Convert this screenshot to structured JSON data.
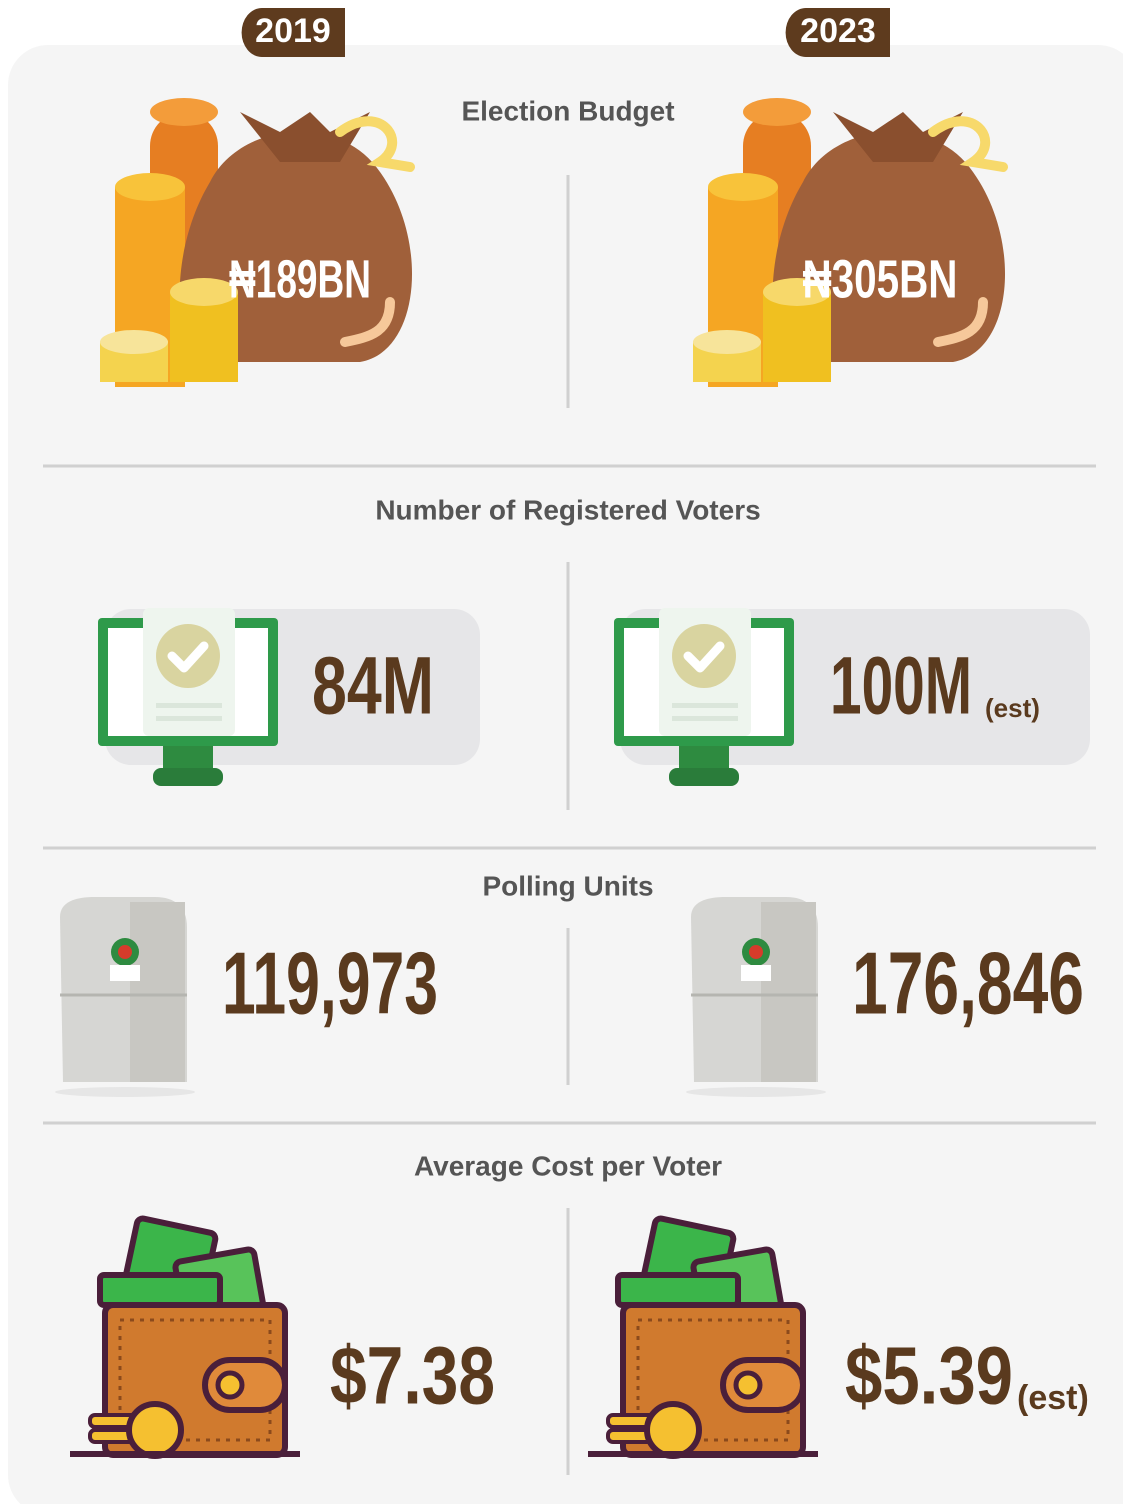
{
  "years": [
    "2019",
    "2023"
  ],
  "sections": [
    {
      "title": "Election Budget",
      "left": {
        "value": "₦189BN"
      },
      "right": {
        "value": "₦305BN"
      }
    },
    {
      "title": "Number of Registered Voters",
      "left": {
        "value": "84M"
      },
      "right": {
        "value": "100M",
        "note": "(est)"
      }
    },
    {
      "title": "Polling Units",
      "left": {
        "value": "119,973"
      },
      "right": {
        "value": "176,846"
      }
    },
    {
      "title": "Average Cost per Voter",
      "left": {
        "value": "$7.38"
      },
      "right": {
        "value": "$5.39",
        "note": "(est)"
      }
    }
  ]
}
